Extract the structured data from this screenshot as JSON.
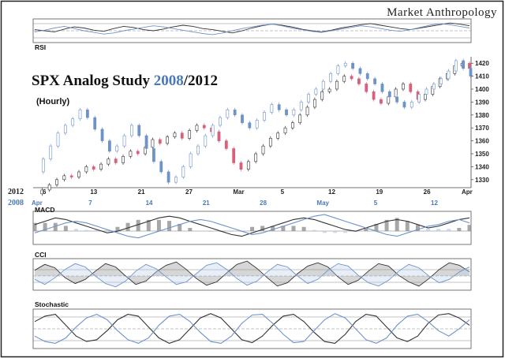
{
  "brand": "Market Anthropology",
  "title_part1": "SPX Analog Study ",
  "title_year_a": "2008",
  "title_sep": "/",
  "title_year_b": "2012",
  "subtitle": "(Hourly)",
  "colors": {
    "series_2012": "#333333",
    "series_2008": "#6f93c8",
    "candle_down": "#d8607a",
    "fill_blue": "#b9cde8",
    "fill_grey": "#8a8a8a"
  },
  "chart_data": [
    {
      "type": "line",
      "name": "main-price",
      "series": [
        {
          "name": "2012",
          "values": [
            1319,
            1322,
            1326,
            1330,
            1333,
            1332,
            1336,
            1340,
            1338,
            1342,
            1346,
            1343,
            1348,
            1352,
            1350,
            1355,
            1361,
            1358,
            1363,
            1366,
            1362,
            1368,
            1372,
            1370,
            1367,
            1360,
            1354,
            1343,
            1338,
            1344,
            1350,
            1356,
            1362,
            1366,
            1370,
            1374,
            1380,
            1386,
            1392,
            1398,
            1400,
            1406,
            1410,
            1408,
            1404,
            1398,
            1392,
            1389,
            1394,
            1400,
            1404,
            1398,
            1392,
            1396,
            1402,
            1408,
            1412,
            1418,
            1420,
            1416
          ]
        },
        {
          "name": "2008",
          "values": [
            1336,
            1346,
            1356,
            1366,
            1372,
            1377,
            1384,
            1378,
            1369,
            1360,
            1352,
            1356,
            1364,
            1372,
            1364,
            1354,
            1344,
            1336,
            1328,
            1332,
            1340,
            1350,
            1356,
            1364,
            1372,
            1378,
            1384,
            1380,
            1374,
            1370,
            1376,
            1382,
            1388,
            1384,
            1380,
            1384,
            1390,
            1396,
            1400,
            1406,
            1412,
            1418,
            1420,
            1416,
            1412,
            1408,
            1404,
            1398,
            1394,
            1390,
            1386,
            1390,
            1396,
            1400,
            1404,
            1408,
            1414,
            1422,
            1416,
            1410
          ]
        }
      ],
      "y_tick_labels": [
        "1420",
        "1410",
        "1400",
        "1390",
        "1380",
        "1370",
        "1360",
        "1350",
        "1340",
        "1330"
      ],
      "x_tick_labels_2012": [
        "6",
        "13",
        "21",
        "27",
        "Mar",
        "5",
        "12",
        "19",
        "26",
        "Apr"
      ],
      "x_tick_labels_2008": [
        "Apr",
        "7",
        "14",
        "21",
        "28",
        "May",
        "5",
        "12"
      ],
      "row_label_2012": "2012",
      "row_label_2008": "2008"
    },
    {
      "type": "line",
      "name": "rsi",
      "label": "RSI",
      "series": [
        {
          "name": "2012",
          "values": [
            52,
            50,
            48,
            53,
            57,
            55,
            51,
            49,
            54,
            58,
            56,
            52,
            50,
            53,
            57,
            60,
            58,
            54,
            52,
            49,
            46,
            50,
            55,
            59,
            62,
            60,
            57,
            53,
            50,
            48,
            51,
            55,
            58,
            61,
            63,
            60,
            57,
            54,
            52,
            55,
            58,
            61,
            64,
            62,
            59
          ]
        },
        {
          "name": "2008",
          "values": [
            48,
            51,
            55,
            58,
            54,
            50,
            47,
            44,
            46,
            50,
            53,
            56,
            59,
            57,
            54,
            51,
            48,
            45,
            43,
            46,
            50,
            54,
            57,
            60,
            62,
            59,
            55,
            52,
            49,
            47,
            50,
            53,
            56,
            59,
            57,
            54,
            51,
            49,
            52,
            56,
            60,
            63,
            61,
            58,
            55
          ]
        }
      ]
    },
    {
      "type": "line",
      "name": "macd",
      "label": "MACD",
      "series": [
        {
          "name": "2012",
          "values": [
            2,
            4,
            6,
            5,
            3,
            1,
            -1,
            -3,
            -2,
            0,
            2,
            4,
            6,
            7,
            6,
            4,
            2,
            0,
            -2,
            -4,
            -5,
            -3,
            -1,
            1,
            3,
            5,
            6,
            5,
            3,
            1,
            -1,
            -2,
            0,
            2,
            4,
            5,
            4,
            2,
            0,
            1,
            3,
            5,
            6
          ]
        },
        {
          "name": "2008",
          "values": [
            -3,
            -1,
            1,
            3,
            4,
            3,
            1,
            -1,
            -3,
            -5,
            -6,
            -4,
            -2,
            0,
            2,
            4,
            5,
            4,
            2,
            0,
            -2,
            -4,
            -3,
            -1,
            1,
            3,
            5,
            7,
            8,
            6,
            4,
            2,
            0,
            -2,
            -4,
            -5,
            -3,
            -1,
            1,
            2,
            4,
            5,
            3
          ]
        }
      ]
    },
    {
      "type": "area",
      "name": "cci",
      "label": "CCI",
      "series": [
        {
          "name": "2012",
          "values": [
            50,
            120,
            80,
            -40,
            -110,
            -60,
            40,
            130,
            90,
            -20,
            -120,
            -80,
            30,
            110,
            150,
            60,
            -50,
            -130,
            -90,
            20,
            120,
            160,
            70,
            -40,
            -140,
            -100,
            10,
            100,
            140,
            90,
            -30,
            -120,
            -70,
            40,
            130,
            100,
            -10,
            -90,
            -140,
            -50,
            60,
            140,
            110,
            30
          ]
        },
        {
          "name": "2008",
          "values": [
            -60,
            -120,
            -40,
            60,
            130,
            90,
            -20,
            -110,
            -150,
            -80,
            40,
            120,
            70,
            -30,
            -120,
            -90,
            10,
            110,
            140,
            60,
            -50,
            -130,
            -80,
            30,
            120,
            90,
            -20,
            -110,
            -60,
            50,
            130,
            100,
            -10,
            -100,
            -140,
            -70,
            40,
            120,
            80,
            -20,
            -100,
            -60,
            30,
            90
          ]
        }
      ]
    },
    {
      "type": "line",
      "name": "stochastic",
      "label": "Stochastic",
      "series": [
        {
          "name": "2012",
          "values": [
            70,
            85,
            90,
            60,
            30,
            15,
            20,
            45,
            75,
            90,
            85,
            55,
            25,
            10,
            20,
            50,
            80,
            92,
            80,
            50,
            20,
            12,
            30,
            60,
            85,
            90,
            70,
            40,
            15,
            10,
            35,
            70,
            90,
            85,
            55,
            25,
            15,
            30,
            65,
            88,
            92,
            80,
            60
          ]
        },
        {
          "name": "2008",
          "values": [
            30,
            15,
            10,
            25,
            55,
            80,
            90,
            75,
            45,
            20,
            10,
            25,
            60,
            85,
            90,
            70,
            40,
            15,
            10,
            30,
            65,
            88,
            90,
            65,
            35,
            12,
            15,
            45,
            75,
            92,
            80,
            50,
            20,
            10,
            25,
            60,
            85,
            90,
            70,
            45,
            30,
            50,
            75
          ]
        }
      ]
    }
  ]
}
